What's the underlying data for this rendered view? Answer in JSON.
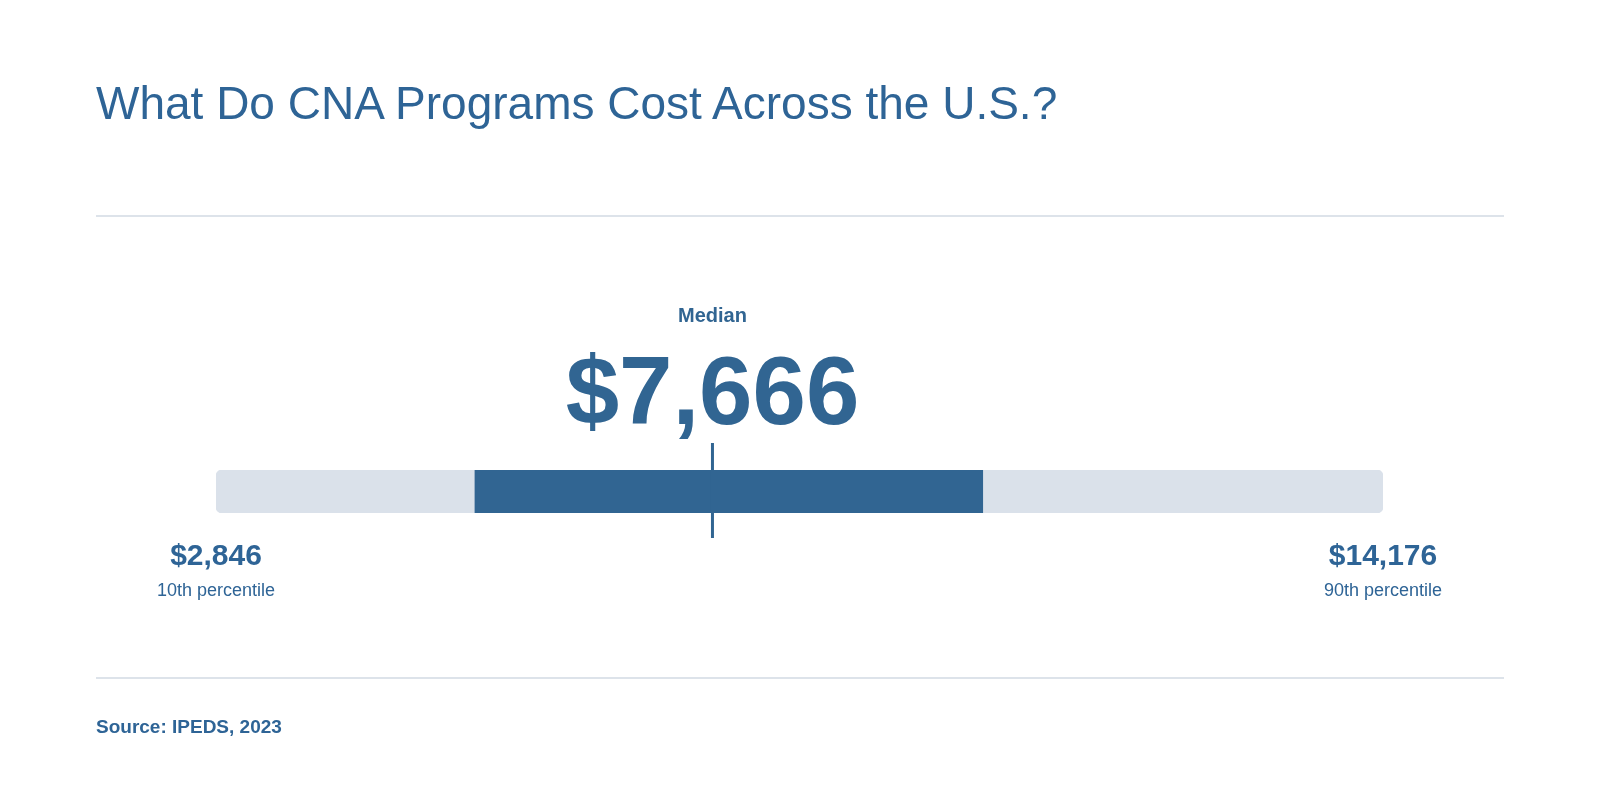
{
  "chart_data": {
    "type": "bar",
    "orientation": "horizontal",
    "title": "What Do CNA Programs Cost Across the U.S.?",
    "categories": [
      null
    ],
    "series": [
      {
        "color": "#dae1ea",
        "base": [
          2846
        ],
        "values": [
          11330
        ]
      },
      {
        "color": "#316592",
        "base": [
          5360
        ],
        "values": [
          4930
        ]
      }
    ],
    "xlim": [
      2846,
      14176
    ],
    "xticks": [
      {
        "value": 2846,
        "label": "$2,846"
      },
      {
        "value": 14176,
        "label": "$14,176"
      }
    ],
    "ref_lines": [
      {
        "axis": "x",
        "value": 7666,
        "label": "$7,666",
        "color": "#316592"
      }
    ],
    "annotations": [
      "Median",
      "10th percentile",
      "90th percentile",
      "Source: IPEDS, 2023"
    ],
    "grid": false,
    "legend": false
  }
}
